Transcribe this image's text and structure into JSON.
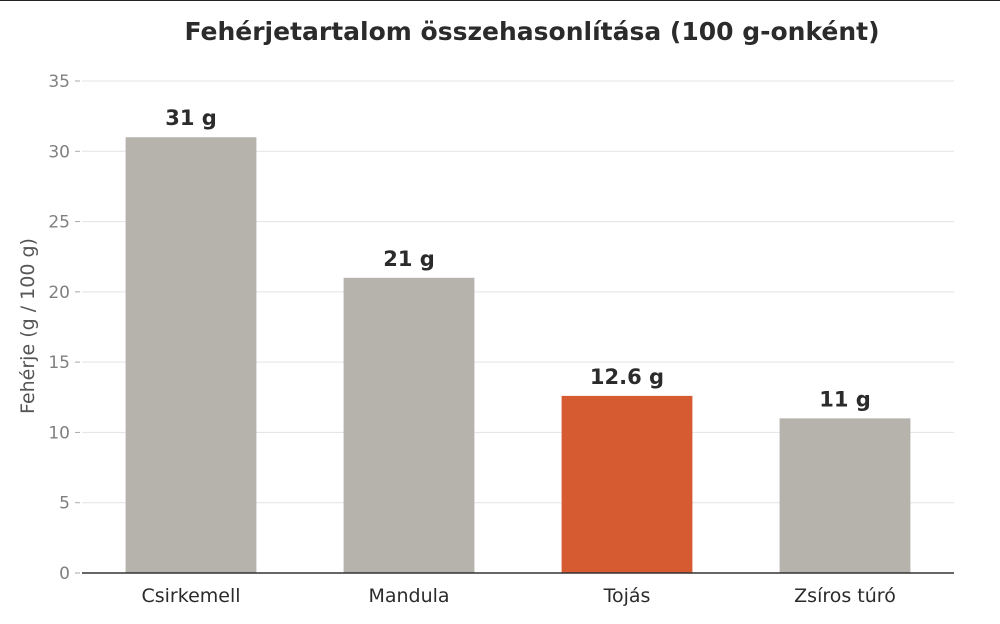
{
  "chart_data": {
    "type": "bar",
    "title": "Fehérjetartalom összehasonlítása (100 g-onként)",
    "xlabel": "",
    "ylabel": "Fehérje (g / 100 g)",
    "categories": [
      "Csirkemell",
      "Mandula",
      "Tojás",
      "Zsíros túró"
    ],
    "values": [
      31,
      21,
      12.6,
      11
    ],
    "value_labels": [
      "31 g",
      "21 g",
      "12.6 g",
      "11 g"
    ],
    "ylim": [
      0,
      35
    ],
    "yticks": [
      0,
      5,
      10,
      15,
      20,
      25,
      30,
      35
    ],
    "grid": true,
    "highlight_index": 2,
    "colors": {
      "bar": "#b5b3ac",
      "highlight": "#d65b31",
      "grid": "#e3e3e3",
      "axis": "#333333"
    }
  }
}
